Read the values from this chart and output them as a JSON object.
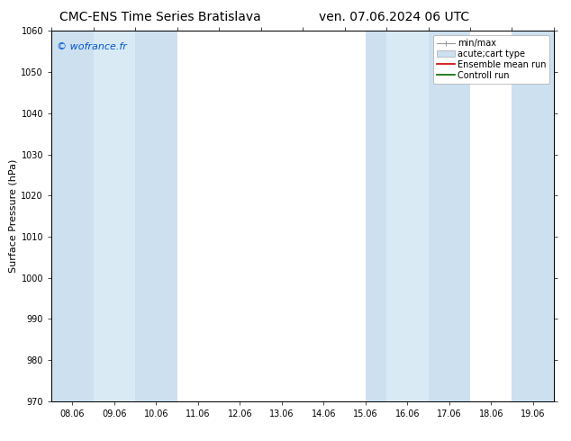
{
  "title_left": "CMC-ENS Time Series Bratislava",
  "title_right": "ven. 07.06.2024 06 UTC",
  "ylabel": "Surface Pressure (hPa)",
  "ylim": [
    970,
    1060
  ],
  "yticks": [
    970,
    980,
    990,
    1000,
    1010,
    1020,
    1030,
    1040,
    1050,
    1060
  ],
  "xtick_labels": [
    "08.06",
    "09.06",
    "10.06",
    "11.06",
    "12.06",
    "13.06",
    "14.06",
    "15.06",
    "16.06",
    "17.06",
    "18.06",
    "19.06"
  ],
  "n_xticks": 12,
  "xlim": [
    0,
    11
  ],
  "shaded_bands": [
    {
      "xmin": 0.0,
      "xmax": 0.75,
      "color": "#cce0f0"
    },
    {
      "xmin": 0.75,
      "xmax": 1.75,
      "color": "#ddeefa"
    },
    {
      "xmin": 1.75,
      "xmax": 2.0,
      "color": "#cce0f0"
    },
    {
      "xmin": 7.0,
      "xmax": 7.75,
      "color": "#cce0f0"
    },
    {
      "xmin": 7.75,
      "xmax": 8.75,
      "color": "#ddeefa"
    },
    {
      "xmin": 8.75,
      "xmax": 9.0,
      "color": "#cce0f0"
    },
    {
      "xmin": 11.0,
      "xmax": 11.0,
      "color": "#cce0f0"
    }
  ],
  "shaded_bands_v2": [
    {
      "xmin": -0.5,
      "xmax": 0.5,
      "color": "#cce0f0"
    },
    {
      "xmin": 0.5,
      "xmax": 1.5,
      "color": "#ddeefa"
    },
    {
      "xmin": 1.5,
      "xmax": 2.5,
      "color": "#cce0f0"
    },
    {
      "xmin": 7.0,
      "xmax": 8.0,
      "color": "#cce0f0"
    },
    {
      "xmin": 8.0,
      "xmax": 9.0,
      "color": "#ddeefa"
    },
    {
      "xmin": 9.0,
      "xmax": 9.5,
      "color": "#cce0f0"
    },
    {
      "xmin": 10.5,
      "xmax": 11.5,
      "color": "#cce0f0"
    }
  ],
  "watermark": "© wofrance.fr",
  "watermark_color": "#0055cc",
  "legend_labels": [
    "min/max",
    "acute;cart type",
    "Ensemble mean run",
    "Controll run"
  ],
  "legend_handle_colors": [
    "#aaaaaa",
    "#cce0f0",
    "#cc0000",
    "#006600"
  ],
  "bg_color": "#ffffff",
  "plot_bg_color": "#ffffff",
  "grid_color": "#dddddd",
  "title_fontsize": 10,
  "label_fontsize": 8,
  "tick_fontsize": 7,
  "ylabel_fontsize": 8,
  "watermark_fontsize": 8,
  "legend_fontsize": 7
}
